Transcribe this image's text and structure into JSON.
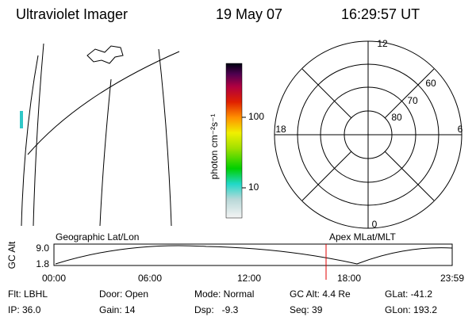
{
  "header": {
    "title": "Ultraviolet Imager",
    "date": "19 May 07",
    "time": "16:29:57 UT"
  },
  "colorbar": {
    "label": "photon cm⁻²s⁻¹",
    "ticks": [
      "100",
      "10"
    ]
  },
  "polar": {
    "mlt_labels": [
      "12",
      "18",
      "6",
      "0"
    ],
    "lat_labels": [
      "60",
      "70",
      "80"
    ]
  },
  "altitude": {
    "ylabel": "GC Alt",
    "yticks": [
      "9.0",
      "1.8"
    ],
    "left_label": "Geographic Lat/Lon",
    "right_label": "Apex MLat/MLT",
    "xticks": [
      "00:00",
      "06:00",
      "12:00",
      "18:00",
      "23:59"
    ]
  },
  "info": {
    "rows": [
      [
        "Flt: LBHL",
        "Door: Open",
        "Mode: Normal",
        "GC Alt: 4.4 Re",
        "GLat: -41.2"
      ],
      [
        "IP: 36.0",
        "Gain: 14",
        "Dsp:   -9.3",
        "Seq: 39",
        "GLon: 193.2"
      ]
    ]
  }
}
